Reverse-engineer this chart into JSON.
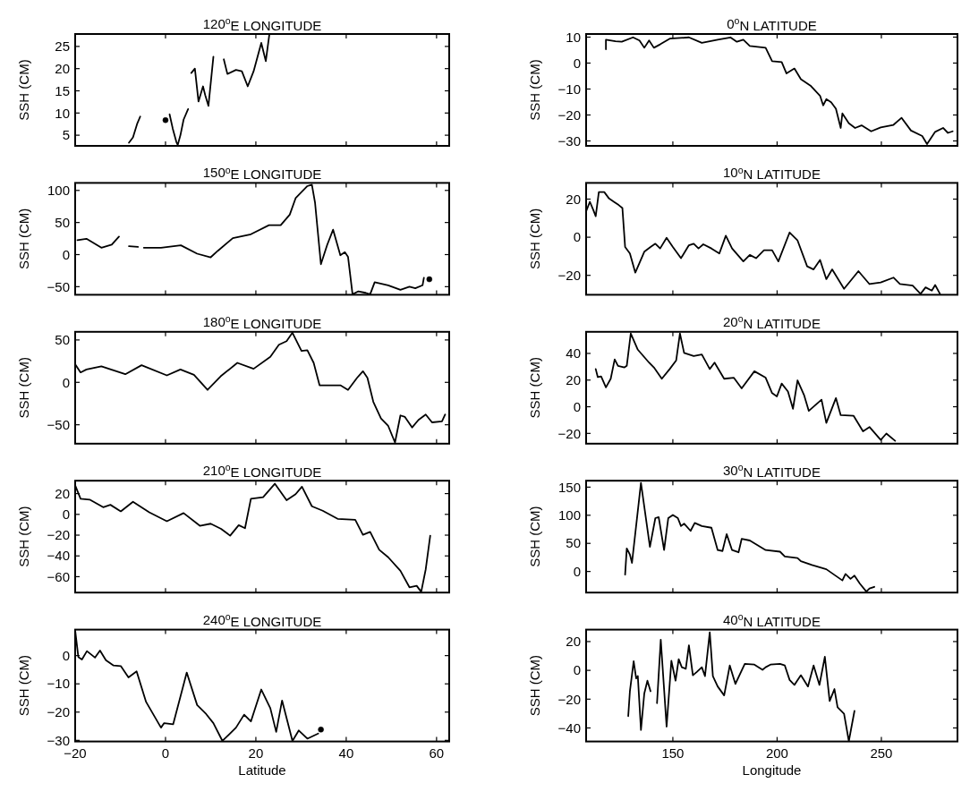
{
  "chart_data": [
    {
      "type": "line",
      "title": "120$^{o}$E LONGITUDE",
      "ylabel": "SSH (CM)",
      "xlim": [
        -20,
        62.8
      ],
      "xticks": [
        -20,
        0,
        20,
        40,
        60
      ],
      "ylim": [
        2.6,
        27.8
      ],
      "yticks": [
        5,
        10,
        15,
        20,
        25
      ],
      "tick_labels": "y",
      "series": [
        {
          "type": "scatter",
          "marker": "circle",
          "color": "#000000",
          "x": [
            0.0
          ],
          "values": [
            8.4
          ]
        },
        {
          "color": "#000000",
          "x": [
            -8.1,
            -7.2,
            -6.3,
            -5.6,
            -5.5,
            0.9,
            1.6,
            2.4,
            2.7,
            3.3,
            4.0,
            5.0,
            5.2,
            5.7,
            6.5,
            7.3,
            8.3,
            8.8,
            9.5,
            10.6,
            11.0,
            12.9,
            13.7,
            15.6,
            16.9,
            18.2,
            19.5,
            21.2,
            22.2,
            23.0
          ],
          "values": [
            3.3,
            4.5,
            7.5,
            9.2,
            null,
            9.7,
            6.5,
            3.5,
            2.8,
            5,
            8.5,
            10.9,
            null,
            19,
            20,
            12.6,
            16,
            14,
            11.6,
            22.7,
            null,
            22.1,
            18.8,
            19.7,
            19.4,
            16,
            19.4,
            25.8,
            21.7,
            27.8
          ]
        }
      ]
    },
    {
      "type": "line",
      "title": "0$^{o}$N LATITUDE",
      "ylabel": "SSH (CM)",
      "xlim": [
        108.4,
        286.5
      ],
      "xticks": [
        150,
        200,
        250
      ],
      "ylim": [
        -31.9,
        11.2
      ],
      "yticks": [
        -30,
        -20,
        -10,
        0,
        10
      ],
      "tick_labels": "y",
      "series": [
        {
          "color": "#000000",
          "x": [
            117.9,
            117.9,
            122.5,
            125.5,
            130.9,
            134.0,
            136.3,
            138.6,
            140.9,
            143.9,
            148.5,
            157.7,
            163.9,
            171.5,
            177.6,
            180.7,
            183.8,
            186.9,
            194.5,
            197.6,
            202.2,
            204.5,
            208.3,
            211.4,
            216.0,
            220.6,
            222.1,
            223.6,
            225.9,
            228.2,
            230.5,
            231.3,
            234.4,
            237.4,
            240.5,
            245.1,
            249.7,
            255.8,
            259.7,
            264.2,
            269.6,
            271.9,
            275.8,
            279.6,
            281.9,
            284.2
          ],
          "values": [
            5.3,
            9.0,
            8.4,
            8.2,
            9.9,
            8.7,
            5.9,
            8.7,
            5.9,
            7.2,
            9.4,
            9.9,
            7.8,
            9.0,
            9.9,
            8.2,
            9.0,
            6.6,
            5.9,
            0.7,
            0.4,
            -4.0,
            -2.1,
            -6.2,
            -8.7,
            -12.6,
            -16.3,
            -13.9,
            -15.1,
            -17.6,
            -25.0,
            -19.4,
            -23.2,
            -25.0,
            -24.0,
            -26.3,
            -24.8,
            -23.8,
            -21.1,
            -26.0,
            -28.1,
            -31.2,
            -26.5,
            -25.0,
            -26.9,
            -26.3
          ]
        }
      ]
    },
    {
      "type": "line",
      "title": "150$^{o}$E LONGITUDE",
      "ylabel": "SSH (CM)",
      "xlim": [
        -20,
        62.8
      ],
      "xticks": [
        -20,
        0,
        20,
        40,
        60
      ],
      "ylim": [
        -62.6,
        111.7
      ],
      "yticks": [
        -50,
        0,
        50,
        100
      ],
      "tick_labels": "y",
      "series": [
        {
          "type": "scatter",
          "marker": "circle",
          "color": "#000000",
          "x": [
            58.4
          ],
          "values": [
            -38.5
          ]
        },
        {
          "color": "#000000",
          "x": [
            -19.5,
            -17.5,
            -14.2,
            -11.9,
            -10.3,
            -9.0,
            -8.1,
            -6.1,
            -5.5,
            -4.8,
            -1.0,
            3.4,
            7.0,
            10.0,
            11.6,
            14.9,
            18.9,
            22.9,
            25.5,
            27.5,
            28.8,
            31.4,
            32.4,
            33.1,
            34.4,
            35.8,
            37.1,
            38.7,
            39.7,
            40.4,
            41.4,
            42.7,
            44.3,
            45.3,
            46.3,
            49.3,
            52.0,
            54.0,
            55.3,
            56.9,
            57.2
          ],
          "values": [
            22.5,
            24.7,
            10.7,
            15.4,
            28,
            null,
            13,
            12,
            null,
            10.7,
            10.7,
            14.5,
            1.4,
            -4.2,
            6.0,
            25.7,
            31.7,
            45.8,
            45.8,
            62.2,
            87.9,
            106.7,
            109,
            80.9,
            -15,
            15.4,
            38.8,
            -1,
            3.7,
            -3.4,
            -61.8,
            -57.2,
            -59.6,
            -61.8,
            -43.1,
            -47.8,
            -54.8,
            -50.1,
            -52.5,
            -47.8,
            -36.1
          ]
        }
      ]
    },
    {
      "type": "line",
      "title": "10$^{o}$N LATITUDE",
      "ylabel": "SSH (CM)",
      "xlim": [
        108.4,
        286.5
      ],
      "xticks": [
        150,
        200,
        250
      ],
      "ylim": [
        -30.2,
        28.5
      ],
      "yticks": [
        -20,
        0,
        20
      ],
      "tick_labels": "y",
      "series": [
        {
          "color": "#000000",
          "x": [
            108.4,
            110.2,
            111.8,
            113.0,
            114.5,
            117.1,
            119.4,
            121.7,
            124.0,
            125.8,
            127.1,
            129.4,
            132.0,
            136.3,
            139.3,
            141.6,
            143.9,
            147.0,
            150.0,
            153.9,
            157.7,
            160.0,
            162.3,
            164.6,
            168.5,
            172.3,
            175.4,
            178.4,
            183.8,
            186.9,
            189.9,
            193.7,
            197.6,
            200.6,
            206.0,
            209.8,
            214.4,
            217.5,
            220.6,
            223.6,
            226.4,
            232.1,
            239.0,
            244.3,
            249.7,
            255.8,
            258.9,
            265.0,
            268.8,
            271.2,
            274.2,
            275.8,
            278.1
          ],
          "values": [
            13.6,
            18.6,
            14.4,
            11.0,
            23.7,
            23.7,
            20.3,
            18.6,
            16.9,
            15.3,
            -5.1,
            -8.5,
            -18.6,
            -7.6,
            -5.1,
            -3.4,
            -5.9,
            -0.3,
            -5.1,
            -11.0,
            -4.2,
            -3.4,
            -5.9,
            -3.7,
            -5.9,
            -8.5,
            0.8,
            -5.9,
            -12.7,
            -9.3,
            -11.0,
            -6.8,
            -6.8,
            -12.7,
            2.5,
            -1.7,
            -15.3,
            -16.9,
            -11.9,
            -22.0,
            -16.9,
            -27.1,
            -17.8,
            -24.6,
            -23.7,
            -21.2,
            -24.6,
            -25.4,
            -29.7,
            -26.3,
            -28.0,
            -25.1,
            -29.7
          ]
        }
      ]
    },
    {
      "type": "line",
      "title": "180$^{o}$E LONGITUDE",
      "ylabel": "SSH (CM)",
      "xlim": [
        -20,
        62.8
      ],
      "xticks": [
        -20,
        0,
        20,
        40,
        60
      ],
      "ylim": [
        -72.3,
        59.6
      ],
      "yticks": [
        -50,
        0,
        50
      ],
      "tick_labels": "y",
      "series": [
        {
          "color": "#000000",
          "x": [
            -20,
            -18.8,
            -17.5,
            -14.2,
            -8.9,
            -5.3,
            0.3,
            3.3,
            6.3,
            9.3,
            12.2,
            15.9,
            19.5,
            23.2,
            25.1,
            26.8,
            28.1,
            30.1,
            31.4,
            32.8,
            34.1,
            36.7,
            38.7,
            40.4,
            42.4,
            43.7,
            44.7,
            46.0,
            47.7,
            49.3,
            50.8,
            52.0,
            53.0,
            54.6,
            56.0,
            57.6,
            59.0,
            61.2,
            61.9
          ],
          "values": [
            21.3,
            11.7,
            15.2,
            18.8,
            9.6,
            20.2,
            8.2,
            15.2,
            8.9,
            -8.9,
            7.1,
            23,
            16,
            30.1,
            44.3,
            48.6,
            58.5,
            37.2,
            37.9,
            23,
            -3.5,
            -3.5,
            -3.5,
            -8.9,
            5.3,
            13.1,
            5.3,
            -23,
            -42.6,
            -51.4,
            -70.9,
            -39,
            -40.8,
            -53.2,
            -44.3,
            -37.9,
            -47.2,
            -46.1,
            -37.9
          ]
        }
      ]
    },
    {
      "type": "line",
      "title": "20$^{o}$N LATITUDE",
      "ylabel": "SSH (CM)",
      "xlim": [
        108.4,
        286.5
      ],
      "xticks": [
        150,
        200,
        250
      ],
      "ylim": [
        -27.7,
        56.2
      ],
      "yticks": [
        -20,
        0,
        20,
        40
      ],
      "tick_labels": "y",
      "series": [
        {
          "color": "#000000",
          "x": [
            113.0,
            114.0,
            115.6,
            117.9,
            120.2,
            122.1,
            123.7,
            126.8,
            127.9,
            129.8,
            133.2,
            138.6,
            140.9,
            144.7,
            148.5,
            151.6,
            153.4,
            155.4,
            160.0,
            163.9,
            167.7,
            170.0,
            174.6,
            179.2,
            183.0,
            189.1,
            194.5,
            197.6,
            199.9,
            202.2,
            205.2,
            207.6,
            209.8,
            212.9,
            215.2,
            221.3,
            223.6,
            228.2,
            230.5,
            236.7,
            241.2,
            244.3,
            249.7,
            252.4,
            256.6
          ],
          "values": [
            28.3,
            22.2,
            22.7,
            14.5,
            21.0,
            35.5,
            30.7,
            29.5,
            30.7,
            54.9,
            42.8,
            33.1,
            29.5,
            21.0,
            28.3,
            34.8,
            54.9,
            40.4,
            38.0,
            39.2,
            28.3,
            33.1,
            21.0,
            21.8,
            13.8,
            26.6,
            21.8,
            10.2,
            7.7,
            17.4,
            11.4,
            -1.5,
            19.8,
            8.9,
            -3.1,
            5.3,
            -12.1,
            6.5,
            -6.3,
            -6.8,
            -18.4,
            -15.2,
            -24.9,
            -20.1,
            -25.6
          ]
        }
      ]
    },
    {
      "type": "line",
      "title": "210$^{o}$E LONGITUDE",
      "ylabel": "SSH (CM)",
      "xlim": [
        -20,
        62.8
      ],
      "xticks": [
        -20,
        0,
        20,
        40,
        60
      ],
      "ylim": [
        -75.3,
        32.4
      ],
      "yticks": [
        -60,
        -40,
        -20,
        0,
        20
      ],
      "tick_labels": "y",
      "series": [
        {
          "color": "#000000",
          "x": [
            -20,
            -18.8,
            -16.8,
            -13.8,
            -12.2,
            -9.9,
            -7.2,
            -3.6,
            0.3,
            4.0,
            7.6,
            10.0,
            12.3,
            14.3,
            16.2,
            17.6,
            18.9,
            21.6,
            24.2,
            26.8,
            28.8,
            30.2,
            32.4,
            34.8,
            38.1,
            42.0,
            43.7,
            45.3,
            47.3,
            49.3,
            52.0,
            54.0,
            55.6,
            56.6,
            57.6,
            58.6
          ],
          "values": [
            28,
            15,
            14.2,
            6.9,
            9.2,
            2.9,
            12.1,
            2,
            -6.6,
            1.2,
            -11,
            -9,
            -13.9,
            -20.5,
            -10.4,
            -13.3,
            15,
            16.5,
            29.5,
            13.6,
            19.4,
            26.6,
            7.8,
            3.5,
            -4.3,
            -5.2,
            -19.7,
            -16.8,
            -34.1,
            -41.3,
            -54.3,
            -70.2,
            -68.8,
            -74.6,
            -52.9,
            -20.5
          ]
        }
      ]
    },
    {
      "type": "line",
      "title": "30$^{o}$N LATITUDE",
      "ylabel": "SSH (CM)",
      "xlim": [
        108.4,
        286.5
      ],
      "xticks": [
        150,
        200,
        250
      ],
      "ylim": [
        -37.5,
        161.4
      ],
      "yticks": [
        0,
        50,
        100,
        150
      ],
      "tick_labels": "y",
      "series": [
        {
          "color": "#000000",
          "x": [
            127.1,
            127.9,
            129.4,
            130.4,
            134.7,
            139.0,
            141.6,
            143.2,
            145.8,
            147.8,
            150.0,
            152.4,
            153.9,
            155.4,
            158.5,
            160.5,
            163.9,
            168.5,
            171.5,
            173.8,
            175.8,
            178.4,
            181.5,
            183.0,
            186.9,
            194.5,
            201.4,
            203.7,
            209.8,
            211.4,
            216.7,
            223.6,
            231.3,
            232.8,
            235.2,
            237.1,
            239.7,
            242.8,
            244.3,
            246.6
          ],
          "values": [
            -5.7,
            40.9,
            30,
            15.3,
            157.4,
            43.8,
            94.9,
            96.6,
            38.1,
            94.9,
            100.6,
            94.9,
            80.7,
            85.2,
            72.2,
            86.4,
            80.7,
            77.8,
            38.1,
            36.4,
            66.5,
            38.1,
            34.1,
            58.0,
            55.1,
            38.1,
            35.2,
            26.7,
            23.9,
            18.2,
            11.4,
            4.0,
            -15.9,
            -4.5,
            -13.1,
            -7.4,
            -21.6,
            -35.8,
            -30.1,
            -27.3
          ]
        }
      ]
    },
    {
      "type": "line",
      "title": "240$^{o}$E LONGITUDE",
      "xlabel": "Latitude",
      "ylabel": "SSH (CM)",
      "xlim": [
        -20,
        62.8
      ],
      "xticks": [
        -20,
        0,
        20,
        40,
        60
      ],
      "ylim": [
        -30.4,
        9.2
      ],
      "yticks": [
        -30,
        -20,
        -10,
        0
      ],
      "series": [
        {
          "type": "scatter",
          "marker": "circle",
          "color": "#000000",
          "x": [
            34.4
          ],
          "values": [
            -26.2
          ]
        },
        {
          "color": "#000000",
          "x": [
            -20,
            -19.3,
            -18.5,
            -17.4,
            -15.6,
            -14.5,
            -13.2,
            -11.5,
            -9.9,
            -8.2,
            -6.4,
            -4.3,
            -1.0,
            -0.3,
            1.7,
            4.7,
            7.0,
            9.0,
            10.6,
            12.6,
            15.6,
            17.4,
            18.9,
            21.2,
            23.2,
            24.5,
            25.8,
            28.1,
            29.5,
            31.4,
            33.8
          ],
          "values": [
            9,
            -0.5,
            -1.4,
            1.6,
            -0.7,
            1.8,
            -1.6,
            -3.5,
            -3.7,
            -7.7,
            -5.6,
            -16.4,
            -25.5,
            -23.9,
            -24.3,
            -6.0,
            -17.5,
            -20.7,
            -23.9,
            -30.2,
            -25.5,
            -20.9,
            -23.3,
            -12,
            -18.6,
            -27,
            -15.9,
            -30.2,
            -26.5,
            -29.4,
            -27.6
          ]
        }
      ]
    },
    {
      "type": "line",
      "title": "40$^{o}$N LATITUDE",
      "xlabel": "Longitude",
      "ylabel": "SSH (CM)",
      "xlim": [
        108.4,
        286.5
      ],
      "xticks": [
        150,
        200,
        250
      ],
      "ylim": [
        -49.4,
        28.3
      ],
      "yticks": [
        -40,
        -20,
        0,
        20
      ],
      "series": [
        {
          "color": "#000000",
          "x": [
            128.6,
            129.4,
            131.2,
            132.4,
            133.2,
            134.7,
            136.3,
            137.8,
            139.3,
            140.5,
            142.4,
            144.2,
            147.0,
            149.3,
            151.3,
            152.8,
            154.3,
            156.2,
            157.7,
            159.6,
            161.5,
            163.9,
            165.4,
            167.7,
            169.2,
            171.5,
            174.6,
            177.3,
            180.0,
            184.5,
            189.1,
            193.0,
            194.5,
            196.8,
            201.4,
            203.7,
            206.0,
            208.3,
            211.4,
            214.8,
            217.5,
            220.3,
            222.9,
            225.2,
            227.5,
            229.0,
            232.1,
            234.4,
            237.1
          ],
          "values": [
            -31.8,
            -14.5,
            6.3,
            -5.6,
            -4.0,
            -41.4,
            -16.1,
            -7.2,
            -14.5,
            null,
            -22.8,
            21.3,
            -39.1,
            6.7,
            -7.2,
            7.8,
            2.2,
            1.1,
            17.4,
            -3.4,
            -1.1,
            2.2,
            -4.0,
            26.4,
            -4.0,
            -11.2,
            -17.4,
            3.4,
            -9.4,
            4.5,
            4.0,
            0.4,
            2.2,
            4.0,
            4.5,
            3.4,
            -6.7,
            -10.1,
            -3.4,
            -11.2,
            3.4,
            -10.1,
            9.4,
            -21.3,
            -13.0,
            -25.7,
            -30.2,
            -49.2,
            -28.2
          ]
        }
      ]
    }
  ]
}
